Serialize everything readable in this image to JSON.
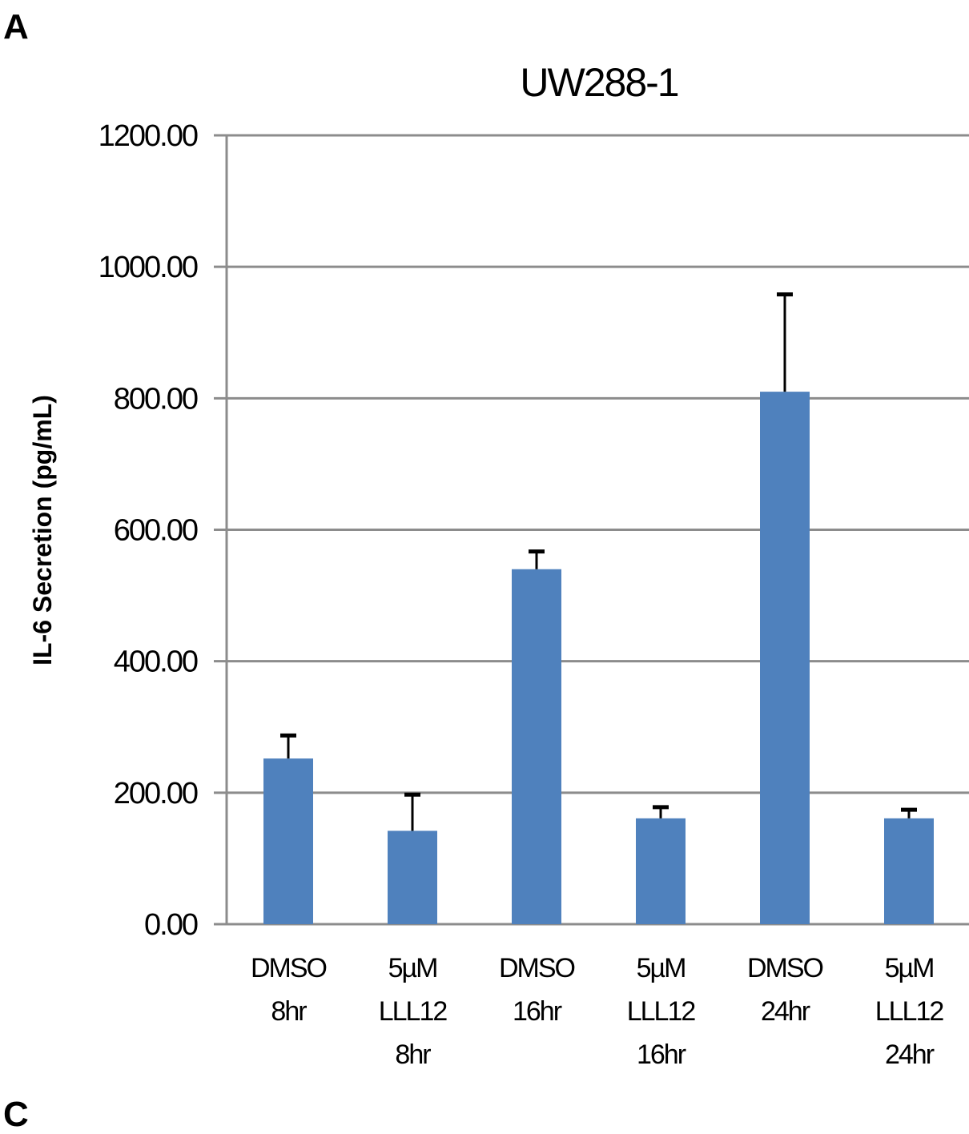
{
  "panel_labels": {
    "top": "A",
    "bottom": "C"
  },
  "colors": {
    "bar": "#4f81bd",
    "grid": "#8c8c8c",
    "error_bar": "#000000"
  },
  "chart_data": {
    "type": "bar",
    "title": "UW288-1",
    "ylabel": "IL-6 Secretion (pg/mL)",
    "xlabel": "",
    "ylim": [
      0,
      1200
    ],
    "yticks": [
      "0.00",
      "200.00",
      "400.00",
      "600.00",
      "800.00",
      "1000.00",
      "1200.00"
    ],
    "grid": true,
    "categories": [
      [
        "DMSO",
        "8hr"
      ],
      [
        "5µM",
        "LLL12",
        "8hr"
      ],
      [
        "DMSO",
        "16hr"
      ],
      [
        "5µM",
        "LLL12",
        "16hr"
      ],
      [
        "DMSO",
        "24hr"
      ],
      [
        "5µM",
        "LLL12",
        "24hr"
      ]
    ],
    "values": [
      252,
      142,
      540,
      161,
      810,
      161
    ],
    "errors": [
      35,
      55,
      27,
      17,
      148,
      13
    ]
  }
}
